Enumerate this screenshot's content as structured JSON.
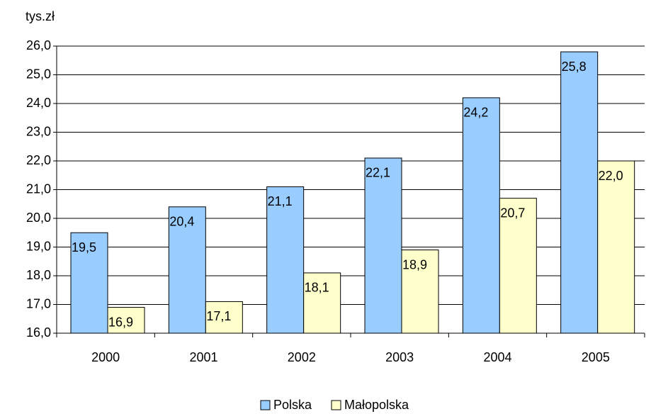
{
  "chart_data": {
    "type": "bar",
    "y_axis_label": "tys.zł",
    "categories": [
      "2000",
      "2001",
      "2002",
      "2003",
      "2004",
      "2005"
    ],
    "series": [
      {
        "name": "Polska",
        "color": "#99ccff",
        "values": [
          19.5,
          20.4,
          21.1,
          22.1,
          24.2,
          25.8
        ],
        "value_labels": [
          "19,5",
          "20,4",
          "21,1",
          "22,1",
          "24,2",
          "25,8"
        ]
      },
      {
        "name": "Małopolska",
        "color": "#ffffcc",
        "values": [
          16.9,
          17.1,
          18.1,
          18.9,
          20.7,
          22.0
        ],
        "value_labels": [
          "16,9",
          "17,1",
          "18,1",
          "18,9",
          "20,7",
          "22,0"
        ]
      }
    ],
    "ylim": [
      16,
      26
    ],
    "yticks": [
      {
        "value": 16,
        "label": "16,0"
      },
      {
        "value": 17,
        "label": "17,0"
      },
      {
        "value": 18,
        "label": "18,0"
      },
      {
        "value": 19,
        "label": "19,0"
      },
      {
        "value": 20,
        "label": "20,0"
      },
      {
        "value": 21,
        "label": "21,0"
      },
      {
        "value": 22,
        "label": "22,0"
      },
      {
        "value": 23,
        "label": "23,0"
      },
      {
        "value": 24,
        "label": "24,0"
      },
      {
        "value": 25,
        "label": "25,0"
      },
      {
        "value": 26,
        "label": "26,0"
      }
    ],
    "grid": true,
    "legend": "bottom"
  }
}
